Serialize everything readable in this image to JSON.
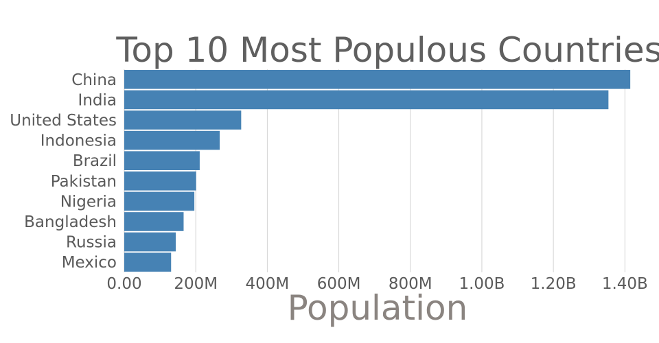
{
  "chart_data": {
    "type": "bar",
    "orientation": "horizontal",
    "title": "Top 10 Most Populous Countries",
    "xlabel": "Population",
    "ylabel": "",
    "categories": [
      "China",
      "India",
      "United States",
      "Indonesia",
      "Brazil",
      "Pakistan",
      "Nigeria",
      "Bangladesh",
      "Russia",
      "Mexico"
    ],
    "values": [
      1415000000,
      1354000000,
      327000000,
      267000000,
      211000000,
      201000000,
      196000000,
      166000000,
      144000000,
      131000000
    ],
    "xlim": [
      0,
      1480000000
    ],
    "x_ticks": [
      0,
      200000000,
      400000000,
      600000000,
      800000000,
      1000000000,
      1200000000,
      1400000000
    ],
    "x_tick_labels": [
      "0.00",
      "200M",
      "400M",
      "600M",
      "800M",
      "1.00B",
      "1.20B",
      "1.40B"
    ],
    "grid": true,
    "legend": "none",
    "bar_color": "#4682b4"
  }
}
